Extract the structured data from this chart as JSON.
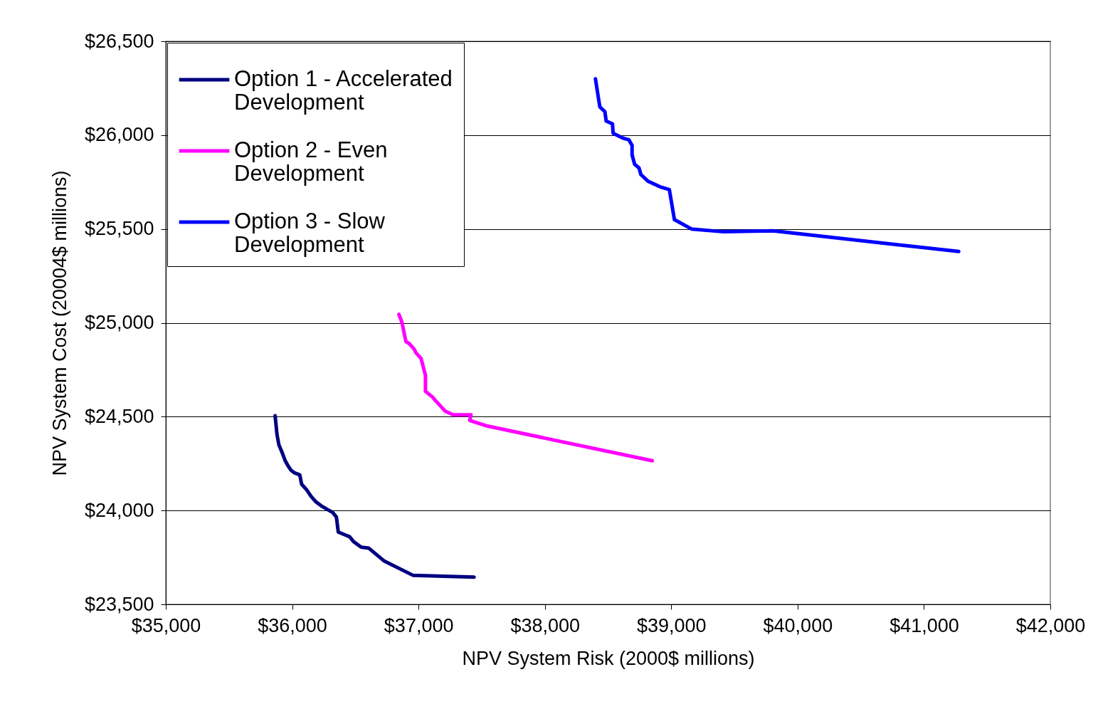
{
  "chart_data": {
    "type": "line",
    "xlabel": "NPV System Risk (2000$ millions)",
    "ylabel": "NPV System Cost (20004$ millions)",
    "xlim": [
      35000,
      42000
    ],
    "xticks": [
      {
        "value": 35000,
        "label": "$35,000"
      },
      {
        "value": 36000,
        "label": "$36,000"
      },
      {
        "value": 37000,
        "label": "$37,000"
      },
      {
        "value": 38000,
        "label": "$38,000"
      },
      {
        "value": 39000,
        "label": "$39,000"
      },
      {
        "value": 40000,
        "label": "$40,000"
      },
      {
        "value": 41000,
        "label": "$41,000"
      },
      {
        "value": 42000,
        "label": "$42,000"
      }
    ],
    "ylim": [
      23500,
      26500
    ],
    "yticks": [
      {
        "value": 23500,
        "label": "$23,500"
      },
      {
        "value": 24000,
        "label": "$24,000"
      },
      {
        "value": 24500,
        "label": "$24,500"
      },
      {
        "value": 25000,
        "label": "$25,000"
      },
      {
        "value": 25500,
        "label": "$25,500"
      },
      {
        "value": 26000,
        "label": "$26,000"
      },
      {
        "value": 26500,
        "label": "$26,500"
      }
    ],
    "grid": "y",
    "legend": "top left",
    "marker": "none",
    "line_style": "solid",
    "series": [
      {
        "name": "Option 1 - Accelerated Development",
        "color": "#000080",
        "x": [
          35865,
          35880,
          35895,
          35920,
          35945,
          35970,
          35990,
          36020,
          36060,
          36075,
          36115,
          36150,
          36190,
          36230,
          36280,
          36320,
          36350,
          36365,
          36420,
          36455,
          36485,
          36545,
          36605,
          36730,
          36955,
          37440
        ],
        "values": [
          24505,
          24405,
          24350,
          24310,
          24265,
          24235,
          24215,
          24200,
          24190,
          24140,
          24110,
          24075,
          24045,
          24025,
          24005,
          23990,
          23965,
          23885,
          23870,
          23860,
          23835,
          23805,
          23800,
          23730,
          23655,
          23645
        ]
      },
      {
        "name": "Option 2 - Even Development",
        "color": "#ff00ff",
        "x": [
          36845,
          36870,
          36880,
          36900,
          36925,
          36965,
          36980,
          37020,
          37055,
          37055,
          37110,
          37135,
          37210,
          37275,
          37415,
          37405,
          37545,
          38850
        ],
        "values": [
          25045,
          25000,
          24965,
          24900,
          24890,
          24860,
          24840,
          24810,
          24720,
          24635,
          24605,
          24585,
          24530,
          24510,
          24510,
          24480,
          24450,
          24265
        ]
      },
      {
        "name": "Option 3 - Slow Development",
        "color": "#0000ff",
        "x": [
          38400,
          38435,
          38475,
          38485,
          38535,
          38540,
          38615,
          38665,
          38690,
          38690,
          38710,
          38745,
          38760,
          38815,
          38910,
          38985,
          39025,
          39160,
          39415,
          39805,
          41275
        ],
        "values": [
          26300,
          26150,
          26125,
          26075,
          26060,
          26010,
          25985,
          25975,
          25945,
          25895,
          25845,
          25825,
          25790,
          25755,
          25725,
          25710,
          25550,
          25500,
          25485,
          25490,
          25380
        ]
      }
    ]
  }
}
